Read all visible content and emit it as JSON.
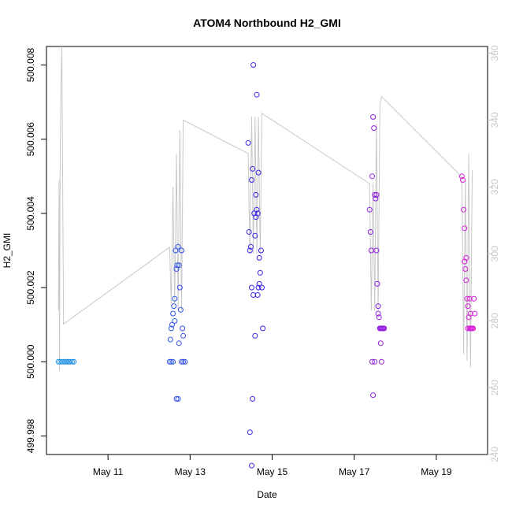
{
  "chart_data": {
    "type": "scatter",
    "title": "ATOM4 Northbound H2_GMI",
    "xlabel": "Date",
    "ylabel": "H2_GMI",
    "xlim": [
      "2016-05-09T12:00",
      "2016-05-20T06:00"
    ],
    "ylim": [
      499.9975,
      500.0085
    ],
    "y2lim": [
      240,
      362
    ],
    "x_ticks": [
      {
        "t": "2016-05-11T00:00",
        "label": "May 11"
      },
      {
        "t": "2016-05-13T00:00",
        "label": "May 13"
      },
      {
        "t": "2016-05-15T00:00",
        "label": "May 15"
      },
      {
        "t": "2016-05-17T00:00",
        "label": "May 17"
      },
      {
        "t": "2016-05-19T00:00",
        "label": "May 19"
      }
    ],
    "y_ticks": [
      {
        "v": 499.998,
        "label": "499.998"
      },
      {
        "v": 500.0,
        "label": "500.000"
      },
      {
        "v": 500.002,
        "label": "500.002"
      },
      {
        "v": 500.004,
        "label": "500.004"
      },
      {
        "v": 500.006,
        "label": "500.006"
      },
      {
        "v": 500.008,
        "label": "500.008"
      }
    ],
    "y2_ticks": [
      {
        "v": 240,
        "label": "240"
      },
      {
        "v": 260,
        "label": "260"
      },
      {
        "v": 280,
        "label": "280"
      },
      {
        "v": 300,
        "label": "300"
      },
      {
        "v": 320,
        "label": "320"
      },
      {
        "v": 340,
        "label": "340"
      },
      {
        "v": 360,
        "label": "360"
      }
    ],
    "colors": {
      "line": "#c8c8c8",
      "axis": "#000000",
      "right_axis": "#c8c8c8",
      "point_start": "#1f9fe6",
      "point_mid": "#3a20e6",
      "point_end": "#e61fd9"
    },
    "points": [
      {
        "t": "2016-05-09T19:00",
        "y": 500.0
      },
      {
        "t": "2016-05-09T20:00",
        "y": 500.0
      },
      {
        "t": "2016-05-09T21:00",
        "y": 500.0
      },
      {
        "t": "2016-05-09T22:00",
        "y": 500.0
      },
      {
        "t": "2016-05-09T23:00",
        "y": 500.0
      },
      {
        "t": "2016-05-10T00:00",
        "y": 500.0
      },
      {
        "t": "2016-05-10T01:00",
        "y": 500.0
      },
      {
        "t": "2016-05-10T02:00",
        "y": 500.0
      },
      {
        "t": "2016-05-10T03:00",
        "y": 500.0
      },
      {
        "t": "2016-05-10T04:00",
        "y": 500.0
      },
      {
        "t": "2016-05-12T12:00",
        "y": 500.0
      },
      {
        "t": "2016-05-12T13:00",
        "y": 500.0
      },
      {
        "t": "2016-05-12T14:00",
        "y": 500.0
      },
      {
        "t": "2016-05-12T12:30",
        "y": 500.0006
      },
      {
        "t": "2016-05-12T13:00",
        "y": 500.0009
      },
      {
        "t": "2016-05-12T13:30",
        "y": 500.001
      },
      {
        "t": "2016-05-12T14:00",
        "y": 500.0013
      },
      {
        "t": "2016-05-12T14:30",
        "y": 500.0015
      },
      {
        "t": "2016-05-12T15:00",
        "y": 500.0017
      },
      {
        "t": "2016-05-12T15:30",
        "y": 500.003
      },
      {
        "t": "2016-05-12T16:00",
        "y": 500.0025
      },
      {
        "t": "2016-05-12T16:30",
        "y": 500.0026
      },
      {
        "t": "2016-05-12T17:00",
        "y": 500.0031
      },
      {
        "t": "2016-05-12T17:30",
        "y": 500.0026
      },
      {
        "t": "2016-05-12T18:00",
        "y": 500.002
      },
      {
        "t": "2016-05-12T18:30",
        "y": 500.0014
      },
      {
        "t": "2016-05-12T19:00",
        "y": 500.003
      },
      {
        "t": "2016-05-12T19:30",
        "y": 500.0009
      },
      {
        "t": "2016-05-12T20:00",
        "y": 500.0007
      },
      {
        "t": "2016-05-12T16:00",
        "y": 499.999
      },
      {
        "t": "2016-05-12T17:00",
        "y": 499.999
      },
      {
        "t": "2016-05-12T19:00",
        "y": 500.0
      },
      {
        "t": "2016-05-12T20:00",
        "y": 500.0
      },
      {
        "t": "2016-05-12T21:00",
        "y": 500.0
      },
      {
        "t": "2016-05-12T17:30",
        "y": 500.0005
      },
      {
        "t": "2016-05-12T15:00",
        "y": 500.0011
      },
      {
        "t": "2016-05-14T10:00",
        "y": 500.0059
      },
      {
        "t": "2016-05-14T10:30",
        "y": 500.0035
      },
      {
        "t": "2016-05-14T11:00",
        "y": 500.003
      },
      {
        "t": "2016-05-14T11:30",
        "y": 500.0031
      },
      {
        "t": "2016-05-14T12:00",
        "y": 500.0049
      },
      {
        "t": "2016-05-14T12:30",
        "y": 500.0052
      },
      {
        "t": "2016-05-14T13:00",
        "y": 500.008
      },
      {
        "t": "2016-05-14T13:30",
        "y": 500.004
      },
      {
        "t": "2016-05-14T14:00",
        "y": 500.0034
      },
      {
        "t": "2016-05-14T14:30",
        "y": 500.0045
      },
      {
        "t": "2016-05-14T15:00",
        "y": 500.0072
      },
      {
        "t": "2016-05-14T15:30",
        "y": 500.004
      },
      {
        "t": "2016-05-14T16:00",
        "y": 500.0051
      },
      {
        "t": "2016-05-14T16:30",
        "y": 500.0028
      },
      {
        "t": "2016-05-14T17:00",
        "y": 500.0024
      },
      {
        "t": "2016-05-14T17:30",
        "y": 500.003
      },
      {
        "t": "2016-05-14T18:00",
        "y": 500.002
      },
      {
        "t": "2016-05-14T18:30",
        "y": 500.0009
      },
      {
        "t": "2016-05-14T12:00",
        "y": 500.002
      },
      {
        "t": "2016-05-14T13:00",
        "y": 500.0018
      },
      {
        "t": "2016-05-14T14:00",
        "y": 500.0007
      },
      {
        "t": "2016-05-14T11:00",
        "y": 499.9981
      },
      {
        "t": "2016-05-14T12:30",
        "y": 499.999
      },
      {
        "t": "2016-05-14T12:00",
        "y": 499.9972
      },
      {
        "t": "2016-05-14T16:00",
        "y": 500.002
      },
      {
        "t": "2016-05-14T16:30",
        "y": 500.0021
      },
      {
        "t": "2016-05-14T15:30",
        "y": 500.0018
      },
      {
        "t": "2016-05-14T15:00",
        "y": 500.0041
      },
      {
        "t": "2016-05-14T14:30",
        "y": 500.0039
      },
      {
        "t": "2016-05-17T09:00",
        "y": 500.0041
      },
      {
        "t": "2016-05-17T09:30",
        "y": 500.0035
      },
      {
        "t": "2016-05-17T10:00",
        "y": 500.003
      },
      {
        "t": "2016-05-17T10:30",
        "y": 500.005
      },
      {
        "t": "2016-05-17T11:00",
        "y": 500.0066
      },
      {
        "t": "2016-05-17T11:30",
        "y": 500.0063
      },
      {
        "t": "2016-05-17T12:00",
        "y": 500.0045
      },
      {
        "t": "2016-05-17T12:30",
        "y": 500.0044
      },
      {
        "t": "2016-05-17T13:00",
        "y": 500.003
      },
      {
        "t": "2016-05-17T13:30",
        "y": 500.0021
      },
      {
        "t": "2016-05-17T14:00",
        "y": 500.0015
      },
      {
        "t": "2016-05-17T14:30",
        "y": 500.0012
      },
      {
        "t": "2016-05-17T15:00",
        "y": 500.0009
      },
      {
        "t": "2016-05-17T15:30",
        "y": 500.0005
      },
      {
        "t": "2016-05-17T16:00",
        "y": 500.0
      },
      {
        "t": "2016-05-17T11:00",
        "y": 499.9991
      },
      {
        "t": "2016-05-17T10:30",
        "y": 500.0
      },
      {
        "t": "2016-05-17T12:00",
        "y": 500.0
      },
      {
        "t": "2016-05-17T15:00",
        "y": 500.0009
      },
      {
        "t": "2016-05-17T15:30",
        "y": 500.0009
      },
      {
        "t": "2016-05-17T16:00",
        "y": 500.0009
      },
      {
        "t": "2016-05-17T16:30",
        "y": 500.0009
      },
      {
        "t": "2016-05-17T17:00",
        "y": 500.0009
      },
      {
        "t": "2016-05-17T17:30",
        "y": 500.0009
      },
      {
        "t": "2016-05-17T14:00",
        "y": 500.0013
      },
      {
        "t": "2016-05-17T13:00",
        "y": 500.0045
      },
      {
        "t": "2016-05-19T15:00",
        "y": 500.005
      },
      {
        "t": "2016-05-19T15:30",
        "y": 500.0049
      },
      {
        "t": "2016-05-19T16:00",
        "y": 500.0041
      },
      {
        "t": "2016-05-19T16:30",
        "y": 500.0036
      },
      {
        "t": "2016-05-19T17:00",
        "y": 500.0025
      },
      {
        "t": "2016-05-19T17:30",
        "y": 500.0022
      },
      {
        "t": "2016-05-19T18:00",
        "y": 500.0017
      },
      {
        "t": "2016-05-19T18:30",
        "y": 500.0015
      },
      {
        "t": "2016-05-19T19:00",
        "y": 500.0012
      },
      {
        "t": "2016-05-19T19:30",
        "y": 500.0017
      },
      {
        "t": "2016-05-19T20:00",
        "y": 500.0013
      },
      {
        "t": "2016-05-19T20:30",
        "y": 500.0009
      },
      {
        "t": "2016-05-19T16:30",
        "y": 500.0027
      },
      {
        "t": "2016-05-19T17:30",
        "y": 500.0028
      },
      {
        "t": "2016-05-19T18:30",
        "y": 500.0009
      },
      {
        "t": "2016-05-19T19:30",
        "y": 500.0009
      },
      {
        "t": "2016-05-19T20:00",
        "y": 500.0009
      },
      {
        "t": "2016-05-19T21:00",
        "y": 500.0009
      },
      {
        "t": "2016-05-19T21:30",
        "y": 500.0009
      },
      {
        "t": "2016-05-19T22:00",
        "y": 500.0017
      },
      {
        "t": "2016-05-19T22:30",
        "y": 500.0013
      }
    ],
    "line_segments": [
      {
        "t": "2016-05-09T19:00",
        "y2": 283
      },
      {
        "t": "2016-05-09T19:20",
        "y2": 322
      },
      {
        "t": "2016-05-09T19:40",
        "y2": 265
      },
      {
        "t": "2016-05-09T20:00",
        "y2": 330
      },
      {
        "t": "2016-05-09T20:30",
        "y2": 350
      },
      {
        "t": "2016-05-09T21:00",
        "y2": 362
      },
      {
        "t": "2016-05-09T22:00",
        "y2": 279
      },
      {
        "t": "2016-05-12T12:00",
        "y2": 302
      },
      {
        "t": "2016-05-12T13:00",
        "y2": 285
      },
      {
        "t": "2016-05-12T14:00",
        "y2": 320
      },
      {
        "t": "2016-05-12T15:00",
        "y2": 285
      },
      {
        "t": "2016-05-12T16:00",
        "y2": 330
      },
      {
        "t": "2016-05-12T17:00",
        "y2": 283
      },
      {
        "t": "2016-05-12T18:00",
        "y2": 337
      },
      {
        "t": "2016-05-12T19:00",
        "y2": 283
      },
      {
        "t": "2016-05-12T20:00",
        "y2": 340
      },
      {
        "t": "2016-05-14T10:00",
        "y2": 330
      },
      {
        "t": "2016-05-14T11:00",
        "y2": 300
      },
      {
        "t": "2016-05-14T12:00",
        "y2": 341
      },
      {
        "t": "2016-05-14T13:00",
        "y2": 300
      },
      {
        "t": "2016-05-14T14:00",
        "y2": 341
      },
      {
        "t": "2016-05-14T15:00",
        "y2": 300
      },
      {
        "t": "2016-05-14T16:00",
        "y2": 341
      },
      {
        "t": "2016-05-14T17:00",
        "y2": 300
      },
      {
        "t": "2016-05-14T18:00",
        "y2": 342
      },
      {
        "t": "2016-05-17T09:00",
        "y2": 321
      },
      {
        "t": "2016-05-17T10:00",
        "y2": 283
      },
      {
        "t": "2016-05-17T11:00",
        "y2": 321
      },
      {
        "t": "2016-05-17T12:00",
        "y2": 283
      },
      {
        "t": "2016-05-17T13:00",
        "y2": 339
      },
      {
        "t": "2016-05-17T14:00",
        "y2": 283
      },
      {
        "t": "2016-05-17T15:00",
        "y2": 345
      },
      {
        "t": "2016-05-17T16:00",
        "y2": 347
      },
      {
        "t": "2016-05-19T15:00",
        "y2": 323
      },
      {
        "t": "2016-05-19T16:00",
        "y2": 270
      },
      {
        "t": "2016-05-19T17:00",
        "y2": 322
      },
      {
        "t": "2016-05-19T18:00",
        "y2": 268
      },
      {
        "t": "2016-05-19T19:00",
        "y2": 330
      },
      {
        "t": "2016-05-19T20:00",
        "y2": 266
      },
      {
        "t": "2016-05-19T21:00",
        "y2": 325
      }
    ]
  }
}
